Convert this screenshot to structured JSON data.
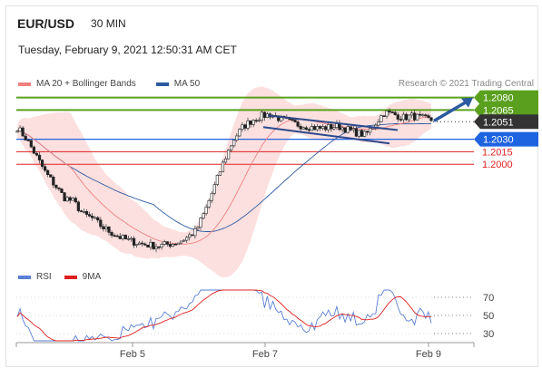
{
  "header": {
    "symbol": "EUR/USD",
    "interval": "30 MIN"
  },
  "datetime": "Tuesday, February 9, 2021 12:50:31 AM CET",
  "legend": {
    "items": [
      {
        "label": "MA 20 + Bollinger Bands",
        "color": "#f08080"
      },
      {
        "label": "MA 50",
        "color": "#2c5aa0"
      }
    ],
    "credit": "Research © 2021 Trading Central"
  },
  "rsi_legend": {
    "items": [
      {
        "label": "RSI",
        "color": "#5a7fd6"
      },
      {
        "label": "9MA",
        "color": "#e02020"
      }
    ]
  },
  "chart_data": {
    "type": "line",
    "price_panel": {
      "series": [
        {
          "name": "MA 20 + Bollinger Bands",
          "color": "#f08080"
        },
        {
          "name": "MA 50",
          "color": "#2c5aa0"
        }
      ],
      "price_samples": [
        1.2044,
        1.203,
        1.201,
        1.199,
        1.1975,
        1.196,
        1.1955,
        1.194,
        1.1935,
        1.1925,
        1.1918,
        1.1912,
        1.1908,
        1.1905,
        1.1903,
        1.1902,
        1.1904,
        1.1906,
        1.1912,
        1.192,
        1.1945,
        1.1975,
        1.2005,
        1.203,
        1.2045,
        1.2053,
        1.2058,
        1.206,
        1.2054,
        1.205,
        1.2047,
        1.2045,
        1.2043,
        1.2044,
        1.2046,
        1.2042,
        1.2038,
        1.2035,
        1.2048,
        1.2062,
        1.206,
        1.2056,
        1.2058,
        1.2055,
        1.2053
      ],
      "levels": [
        {
          "value": "1.2080",
          "type": "resistance",
          "color": "#5aa01e"
        },
        {
          "value": "1.2065",
          "type": "resistance",
          "color": "#5aa01e"
        },
        {
          "value": "1.2051",
          "type": "last",
          "color": "#333333"
        },
        {
          "value": "1.2030",
          "type": "pivot",
          "color": "#1e63e0"
        },
        {
          "value": "1.2015",
          "type": "support",
          "color": "#e02020"
        },
        {
          "value": "1.2000",
          "type": "support",
          "color": "#e02020"
        }
      ],
      "ylim": [
        1.1885,
        1.2085
      ]
    },
    "rsi_panel": {
      "ticks": [
        "70",
        "50",
        "30"
      ],
      "ylim": [
        20,
        80
      ]
    },
    "x_ticks": [
      "Feb 5",
      "Feb 7",
      "Feb 9"
    ]
  }
}
